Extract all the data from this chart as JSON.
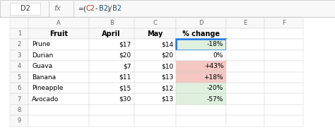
{
  "formula_bar_cell": "D2",
  "formula_bar_text": "=(C2-B2)/B2",
  "col_headers": [
    "A",
    "B",
    "C",
    "D",
    "E",
    "F"
  ],
  "row_numbers": [
    "1",
    "2",
    "3",
    "4",
    "5",
    "6",
    "7",
    "8",
    "9"
  ],
  "header_row": [
    "Fruit",
    "April",
    "May",
    "% change"
  ],
  "rows": [
    [
      "Prune",
      "$17",
      "$14",
      "-18%"
    ],
    [
      "Durian",
      "$20",
      "$20",
      "0%"
    ],
    [
      "Guava",
      "$7",
      "$10",
      "+43%"
    ],
    [
      "Banana",
      "$11",
      "$13",
      "+18%"
    ],
    [
      "Pineapple",
      "$15",
      "$12",
      "-20%"
    ],
    [
      "Avocado",
      "$30",
      "$13",
      "-57%"
    ]
  ],
  "d_col_colors": [
    "#dff0df",
    "#ffffff",
    "#f4c7c3",
    "#f4c7c3",
    "#dff0df",
    "#dff0df"
  ],
  "d2_border_color": "#1a73e8",
  "grid_color": "#d0d0d0",
  "header_bg": "#f8f8f8",
  "cell_text_color": "#000000",
  "header_text_color": "#666666",
  "formula_bar_border": "#c0c0c0",
  "sheet_bg": "#ffffff"
}
